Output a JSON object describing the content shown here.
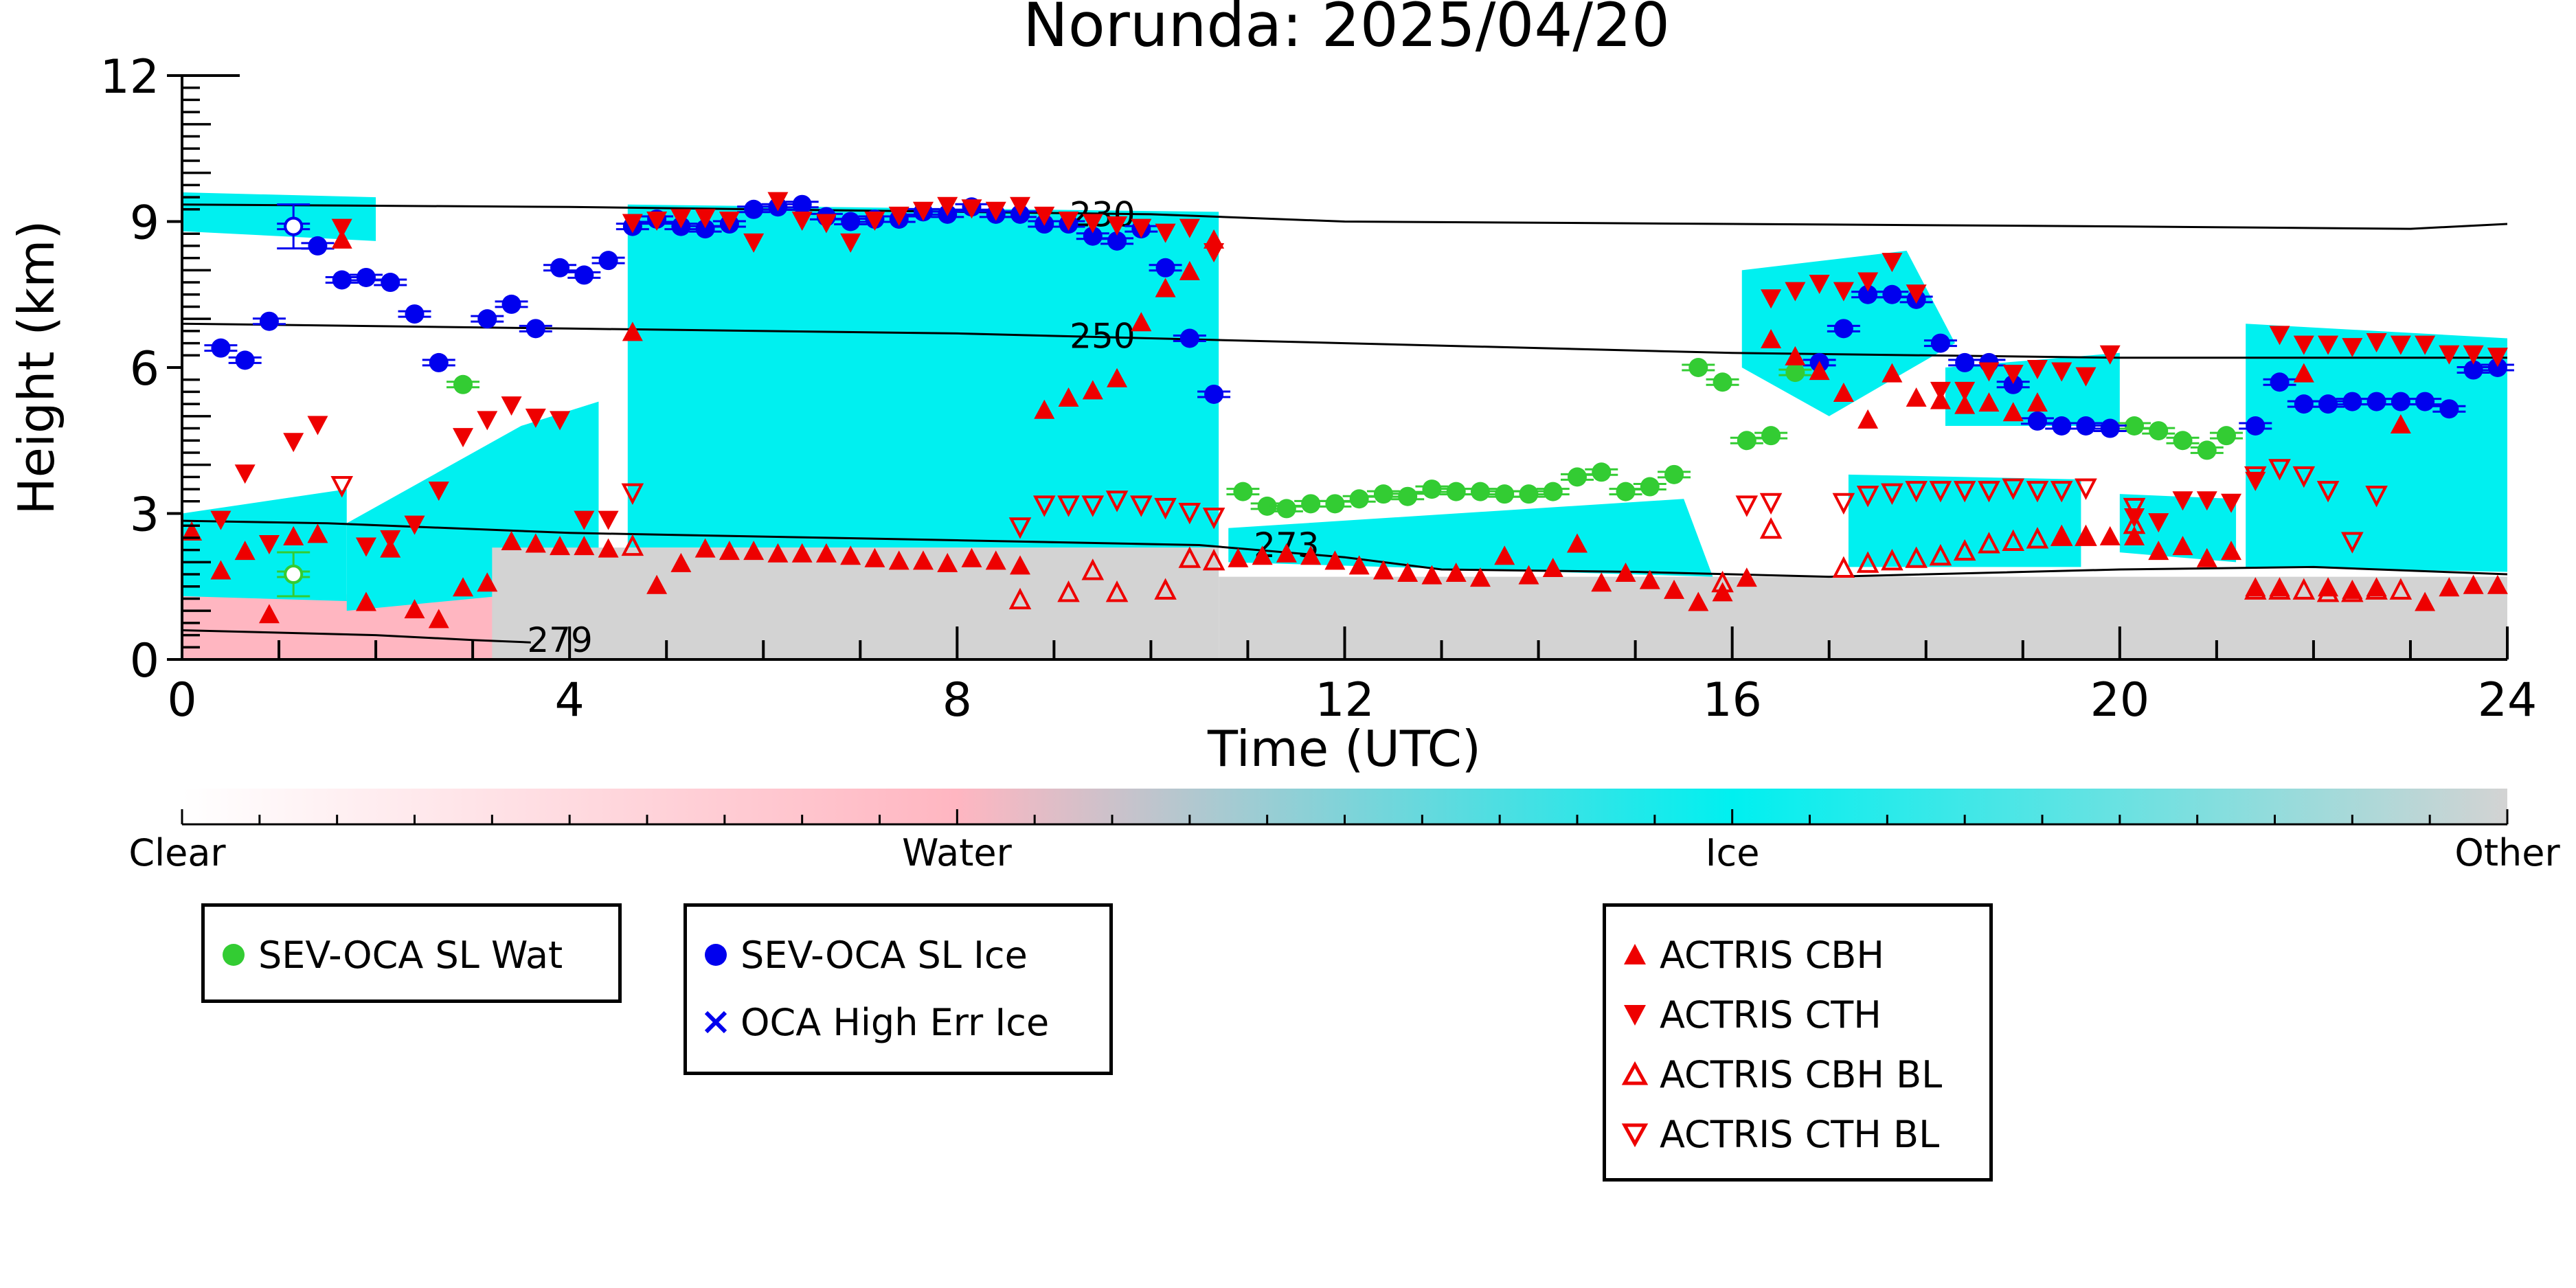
{
  "chart_data": {
    "type": "scatter",
    "title": "Norunda: 2025/04/20",
    "xlabel": "Time (UTC)",
    "ylabel": "Height (km)",
    "xlim": [
      0,
      24
    ],
    "ylim": [
      0,
      12
    ],
    "xticks": [
      "0",
      "4",
      "8",
      "12",
      "16",
      "20",
      "24"
    ],
    "yticks": [
      "0",
      "3",
      "6",
      "9",
      "12"
    ],
    "colorbar": {
      "labels": [
        "Clear",
        "Water",
        "Ice",
        "Other"
      ],
      "colors": {
        "clear": "#ffffff",
        "water": "#ffb6c1",
        "ice": "#00f0f0",
        "other": "#d3d3d3"
      }
    },
    "contours": [
      {
        "label": "230",
        "label_at": [
          9.5,
          9.1
        ],
        "points": [
          [
            0,
            9.35
          ],
          [
            4,
            9.3
          ],
          [
            8,
            9.2
          ],
          [
            10,
            9.15
          ],
          [
            12,
            9.0
          ],
          [
            16,
            8.95
          ],
          [
            20,
            8.9
          ],
          [
            23,
            8.85
          ],
          [
            24,
            8.95
          ]
        ]
      },
      {
        "label": "250",
        "label_at": [
          9.5,
          6.6
        ],
        "points": [
          [
            0,
            6.9
          ],
          [
            4,
            6.8
          ],
          [
            8,
            6.7
          ],
          [
            10,
            6.6
          ],
          [
            12,
            6.5
          ],
          [
            16,
            6.3
          ],
          [
            20,
            6.2
          ],
          [
            24,
            6.2
          ]
        ]
      },
      {
        "label": "273",
        "label_at": [
          11.4,
          2.3
        ],
        "points": [
          [
            0,
            2.85
          ],
          [
            1.5,
            2.8
          ],
          [
            4,
            2.6
          ],
          [
            8,
            2.45
          ],
          [
            10.5,
            2.35
          ],
          [
            12,
            2.1
          ],
          [
            13,
            1.85
          ],
          [
            15,
            1.8
          ],
          [
            17,
            1.7
          ],
          [
            20,
            1.85
          ],
          [
            22,
            1.9
          ],
          [
            24,
            1.75
          ]
        ]
      },
      {
        "label": "279",
        "label_at": [
          3.9,
          0.35
        ],
        "points": [
          [
            0,
            0.6
          ],
          [
            1,
            0.55
          ],
          [
            2,
            0.5
          ],
          [
            3,
            0.4
          ],
          [
            3.6,
            0.35
          ]
        ]
      }
    ],
    "series": [
      {
        "name": "SEV-OCA SL Wat",
        "color": "#33cc33",
        "marker": "circle",
        "x": [
          1.15,
          2.9,
          10.95,
          11.2,
          11.4,
          11.65,
          11.9,
          12.15,
          12.4,
          12.65,
          12.9,
          13.15,
          13.4,
          13.65,
          13.9,
          14.15,
          14.4,
          14.65,
          14.9,
          15.15,
          15.4,
          15.65,
          15.9,
          16.15,
          16.4,
          16.65,
          20.15,
          20.4,
          20.65,
          20.9,
          21.1
        ],
        "y": [
          1.75,
          5.65,
          3.45,
          3.15,
          3.1,
          3.2,
          3.2,
          3.3,
          3.4,
          3.35,
          3.5,
          3.45,
          3.45,
          3.4,
          3.4,
          3.45,
          3.75,
          3.85,
          3.45,
          3.55,
          3.8,
          6.0,
          5.7,
          4.5,
          4.6,
          5.9,
          4.8,
          4.7,
          4.5,
          4.3,
          4.6
        ]
      },
      {
        "name": "SEV-OCA SL Ice",
        "color": "#0000ee",
        "marker": "circle",
        "x": [
          0.4,
          0.65,
          0.9,
          1.15,
          1.4,
          1.65,
          1.9,
          2.15,
          2.4,
          2.65,
          3.15,
          3.4,
          3.65,
          3.9,
          4.15,
          4.4,
          4.65,
          4.9,
          5.15,
          5.4,
          5.65,
          5.9,
          6.15,
          6.4,
          6.65,
          6.9,
          7.15,
          7.4,
          7.65,
          7.9,
          8.15,
          8.4,
          8.65,
          8.9,
          9.15,
          9.4,
          9.65,
          9.9,
          10.15,
          10.4,
          10.65,
          16.9,
          17.15,
          17.4,
          17.65,
          17.9,
          18.15,
          18.4,
          18.65,
          18.9,
          19.15,
          19.4,
          19.65,
          19.9,
          21.4,
          21.65,
          21.9,
          22.15,
          22.4,
          22.65,
          22.9,
          23.15,
          23.4,
          23.65,
          23.9
        ],
        "y": [
          6.4,
          6.15,
          6.95,
          8.9,
          8.5,
          7.8,
          7.85,
          7.75,
          7.1,
          6.1,
          7.0,
          7.3,
          6.8,
          8.05,
          7.9,
          8.2,
          8.9,
          9.05,
          8.9,
          8.85,
          8.95,
          9.25,
          9.3,
          9.35,
          9.1,
          9.0,
          9.05,
          9.05,
          9.2,
          9.15,
          9.3,
          9.15,
          9.15,
          8.95,
          8.95,
          8.7,
          8.6,
          8.85,
          8.05,
          6.6,
          5.45,
          6.1,
          6.8,
          7.5,
          7.5,
          7.4,
          6.5,
          6.1,
          6.1,
          5.65,
          4.9,
          4.8,
          4.8,
          4.75,
          4.8,
          5.7,
          5.25,
          5.25,
          5.3,
          5.3,
          5.3,
          5.3,
          5.15,
          5.95,
          6.0
        ]
      },
      {
        "name": "OCA High Err Ice",
        "color": "#0000ee",
        "marker": "x",
        "x": [],
        "y": []
      },
      {
        "name": "ACTRIS CBH",
        "color": "#ee0000",
        "marker": "triangle-up",
        "x": [
          0.1,
          0.4,
          0.65,
          0.9,
          1.15,
          1.4,
          1.65,
          1.9,
          2.15,
          2.4,
          2.65,
          2.9,
          3.15,
          3.4,
          3.65,
          3.9,
          4.15,
          4.4,
          4.65,
          4.9,
          5.15,
          5.4,
          5.65,
          5.9,
          6.15,
          6.4,
          6.65,
          6.9,
          7.15,
          7.4,
          7.65,
          7.9,
          8.15,
          8.4,
          8.65,
          8.9,
          9.15,
          9.4,
          9.65,
          9.9,
          10.15,
          10.4,
          10.65,
          10.9,
          11.15,
          11.4,
          11.65,
          11.9,
          12.15,
          12.4,
          12.65,
          12.9,
          13.15,
          13.4,
          13.65,
          13.9,
          14.15,
          14.4,
          14.65,
          14.9,
          15.15,
          15.4,
          15.65,
          15.9,
          16.15,
          16.4,
          16.65,
          16.9,
          17.15,
          17.4,
          17.65,
          17.9,
          18.15,
          18.4,
          18.65,
          18.9,
          19.15,
          19.4,
          19.65,
          19.9,
          20.15,
          20.4,
          20.65,
          20.9,
          21.15,
          21.4,
          21.65,
          21.9,
          22.15,
          22.4,
          22.65,
          22.9,
          23.15,
          23.4,
          23.65,
          23.9
        ],
        "y": [
          2.6,
          1.8,
          2.2,
          0.9,
          2.5,
          2.55,
          8.6,
          1.15,
          2.25,
          1.0,
          0.8,
          1.45,
          1.55,
          2.4,
          2.35,
          2.3,
          2.3,
          2.25,
          6.7,
          1.5,
          1.95,
          2.25,
          2.2,
          2.2,
          2.15,
          2.15,
          2.15,
          2.1,
          2.05,
          2.0,
          2.0,
          1.95,
          2.05,
          2.0,
          1.9,
          5.1,
          5.35,
          5.5,
          5.75,
          6.9,
          7.6,
          7.95,
          8.6,
          2.05,
          2.1,
          2.15,
          2.1,
          2.0,
          1.9,
          1.8,
          1.75,
          1.7,
          1.75,
          1.65,
          2.1,
          1.7,
          1.85,
          2.35,
          1.55,
          1.75,
          1.6,
          1.4,
          1.15,
          1.35,
          1.65,
          6.55,
          6.2,
          5.9,
          5.45,
          4.9,
          5.85,
          5.35,
          5.3,
          5.2,
          5.25,
          5.05,
          5.25,
          2.5,
          2.5,
          2.5,
          2.5,
          2.2,
          2.3,
          2.05,
          2.2,
          1.45,
          1.45,
          5.85,
          1.45,
          1.4,
          1.45,
          4.8,
          1.15,
          1.45,
          1.5,
          1.5
        ]
      },
      {
        "name": "ACTRIS CTH",
        "color": "#ee0000",
        "marker": "triangle-down",
        "x": [
          0.4,
          0.65,
          0.9,
          1.15,
          1.4,
          1.65,
          1.9,
          2.15,
          2.4,
          2.65,
          2.9,
          3.15,
          3.4,
          3.65,
          3.9,
          4.15,
          4.4,
          4.65,
          4.9,
          5.15,
          5.4,
          5.65,
          5.9,
          6.15,
          6.4,
          6.65,
          6.9,
          7.15,
          7.4,
          7.65,
          7.9,
          8.15,
          8.4,
          8.65,
          8.9,
          9.15,
          9.4,
          9.65,
          9.9,
          10.15,
          10.4,
          10.65,
          16.4,
          16.65,
          16.9,
          17.15,
          17.4,
          17.65,
          17.9,
          18.15,
          18.4,
          18.65,
          18.9,
          19.15,
          19.4,
          19.65,
          19.9,
          20.15,
          20.4,
          20.65,
          20.9,
          21.15,
          21.4,
          21.65,
          21.9,
          22.15,
          22.4,
          22.65,
          22.9,
          23.15,
          23.4,
          23.65,
          23.9
        ],
        "y": [
          2.9,
          3.85,
          2.4,
          4.5,
          4.85,
          8.9,
          2.35,
          2.5,
          2.8,
          3.5,
          4.6,
          4.95,
          5.25,
          5.0,
          4.95,
          2.9,
          2.9,
          9.0,
          9.05,
          9.1,
          9.1,
          9.05,
          8.6,
          9.45,
          9.05,
          9.0,
          8.6,
          9.05,
          9.15,
          9.25,
          9.35,
          9.3,
          9.25,
          9.35,
          9.15,
          9.05,
          9.0,
          8.95,
          8.9,
          8.8,
          8.9,
          8.4,
          7.45,
          7.6,
          7.75,
          7.6,
          7.8,
          8.2,
          7.55,
          5.55,
          5.55,
          5.95,
          5.9,
          6.0,
          5.95,
          5.85,
          6.3,
          2.95,
          2.85,
          3.3,
          3.3,
          3.25,
          3.7,
          6.7,
          6.5,
          6.5,
          6.45,
          6.55,
          6.5,
          6.5,
          6.3,
          6.3,
          6.25
        ]
      },
      {
        "name": "ACTRIS CBH BL",
        "color": "#ee0000",
        "marker": "triangle-up-open",
        "x": [
          4.65,
          8.65,
          9.15,
          9.4,
          9.65,
          10.15,
          10.4,
          10.65,
          15.9,
          16.4,
          17.15,
          17.4,
          17.65,
          17.9,
          18.15,
          18.4,
          18.65,
          18.9,
          19.15,
          19.4,
          19.65,
          20.15,
          21.4,
          21.65,
          21.9,
          22.15,
          22.4,
          22.65,
          22.9
        ],
        "y": [
          2.3,
          1.2,
          1.35,
          1.8,
          1.35,
          1.4,
          2.05,
          2.0,
          1.55,
          2.65,
          1.85,
          1.95,
          2.0,
          2.05,
          2.1,
          2.2,
          2.35,
          2.4,
          2.45,
          2.5,
          2.5,
          2.75,
          1.4,
          1.4,
          1.4,
          1.35,
          1.35,
          1.4,
          1.4
        ]
      },
      {
        "name": "ACTRIS CTH BL",
        "color": "#ee0000",
        "marker": "triangle-down-open",
        "x": [
          1.65,
          4.65,
          8.65,
          8.9,
          9.15,
          9.4,
          9.65,
          9.9,
          10.15,
          10.4,
          10.65,
          16.15,
          16.4,
          17.15,
          17.4,
          17.65,
          17.9,
          18.15,
          18.4,
          18.65,
          18.9,
          19.15,
          19.4,
          19.65,
          20.15,
          21.4,
          21.65,
          21.9,
          22.15,
          22.4,
          22.65
        ],
        "y": [
          3.6,
          3.45,
          2.75,
          3.2,
          3.2,
          3.2,
          3.3,
          3.2,
          3.15,
          3.05,
          2.95,
          3.2,
          3.25,
          3.25,
          3.4,
          3.45,
          3.5,
          3.5,
          3.5,
          3.5,
          3.55,
          3.5,
          3.5,
          3.55,
          3.15,
          3.8,
          3.95,
          3.8,
          3.5,
          2.45,
          3.4
        ]
      }
    ],
    "open_markers": [
      {
        "series": "SEV-OCA SL Ice",
        "x": 1.15,
        "y": 8.9
      },
      {
        "series": "SEV-OCA SL Wat",
        "x": 1.15,
        "y": 1.75
      }
    ],
    "regions": [
      {
        "class": "ice",
        "polygon": [
          [
            4.6,
            9.35
          ],
          [
            10.7,
            9.2
          ],
          [
            10.7,
            2.3
          ],
          [
            4.6,
            2.3
          ]
        ]
      },
      {
        "class": "ice",
        "polygon": [
          [
            0.0,
            3.0
          ],
          [
            1.7,
            3.5
          ],
          [
            1.7,
            1.2
          ],
          [
            0.0,
            1.3
          ]
        ]
      },
      {
        "class": "ice",
        "polygon": [
          [
            1.7,
            2.8
          ],
          [
            3.5,
            4.8
          ],
          [
            4.3,
            5.3
          ],
          [
            4.3,
            1.5
          ],
          [
            1.7,
            1.0
          ]
        ]
      },
      {
        "class": "ice",
        "polygon": [
          [
            10.8,
            2.7
          ],
          [
            15.5,
            3.3
          ],
          [
            15.8,
            1.7
          ],
          [
            10.8,
            2.0
          ]
        ]
      },
      {
        "class": "ice",
        "polygon": [
          [
            16.1,
            8.0
          ],
          [
            17.8,
            8.4
          ],
          [
            18.3,
            6.5
          ],
          [
            17.0,
            5.0
          ],
          [
            16.1,
            6.0
          ]
        ]
      },
      {
        "class": "ice",
        "polygon": [
          [
            17.2,
            3.8
          ],
          [
            19.6,
            3.7
          ],
          [
            19.6,
            1.9
          ],
          [
            17.2,
            1.9
          ]
        ]
      },
      {
        "class": "ice",
        "polygon": [
          [
            18.2,
            6.0
          ],
          [
            20.0,
            6.3
          ],
          [
            20.0,
            4.8
          ],
          [
            18.2,
            4.8
          ]
        ]
      },
      {
        "class": "ice",
        "polygon": [
          [
            20.0,
            3.4
          ],
          [
            21.2,
            3.3
          ],
          [
            21.2,
            2.0
          ],
          [
            20.0,
            2.2
          ]
        ]
      },
      {
        "class": "ice",
        "polygon": [
          [
            21.3,
            6.9
          ],
          [
            24.0,
            6.6
          ],
          [
            24.0,
            1.8
          ],
          [
            21.3,
            1.9
          ]
        ]
      },
      {
        "class": "ice",
        "polygon": [
          [
            0.0,
            9.6
          ],
          [
            2.0,
            9.5
          ],
          [
            2.0,
            8.6
          ],
          [
            0.0,
            8.8
          ]
        ]
      },
      {
        "class": "water",
        "polygon": [
          [
            0.0,
            1.3
          ],
          [
            4.6,
            1.4
          ],
          [
            4.6,
            0.0
          ],
          [
            0.0,
            0.0
          ]
        ]
      },
      {
        "class": "water",
        "polygon": [
          [
            4.6,
            1.6
          ],
          [
            9.0,
            1.6
          ],
          [
            9.0,
            0.0
          ],
          [
            4.6,
            0.0
          ]
        ]
      },
      {
        "class": "other",
        "polygon": [
          [
            3.2,
            2.3
          ],
          [
            10.7,
            2.3
          ],
          [
            10.7,
            0.0
          ],
          [
            3.2,
            0.0
          ]
        ]
      },
      {
        "class": "other",
        "polygon": [
          [
            10.7,
            1.7
          ],
          [
            24.0,
            1.7
          ],
          [
            24.0,
            0.0
          ],
          [
            10.7,
            0.0
          ]
        ]
      }
    ],
    "legend": [
      "SEV-OCA SL Wat",
      "SEV-OCA SL Ice",
      "OCA High Err Ice",
      "ACTRIS CBH",
      "ACTRIS CTH",
      "ACTRIS CBH BL",
      "ACTRIS CTH BL"
    ],
    "grid": false,
    "legend_placement": "bottom"
  }
}
